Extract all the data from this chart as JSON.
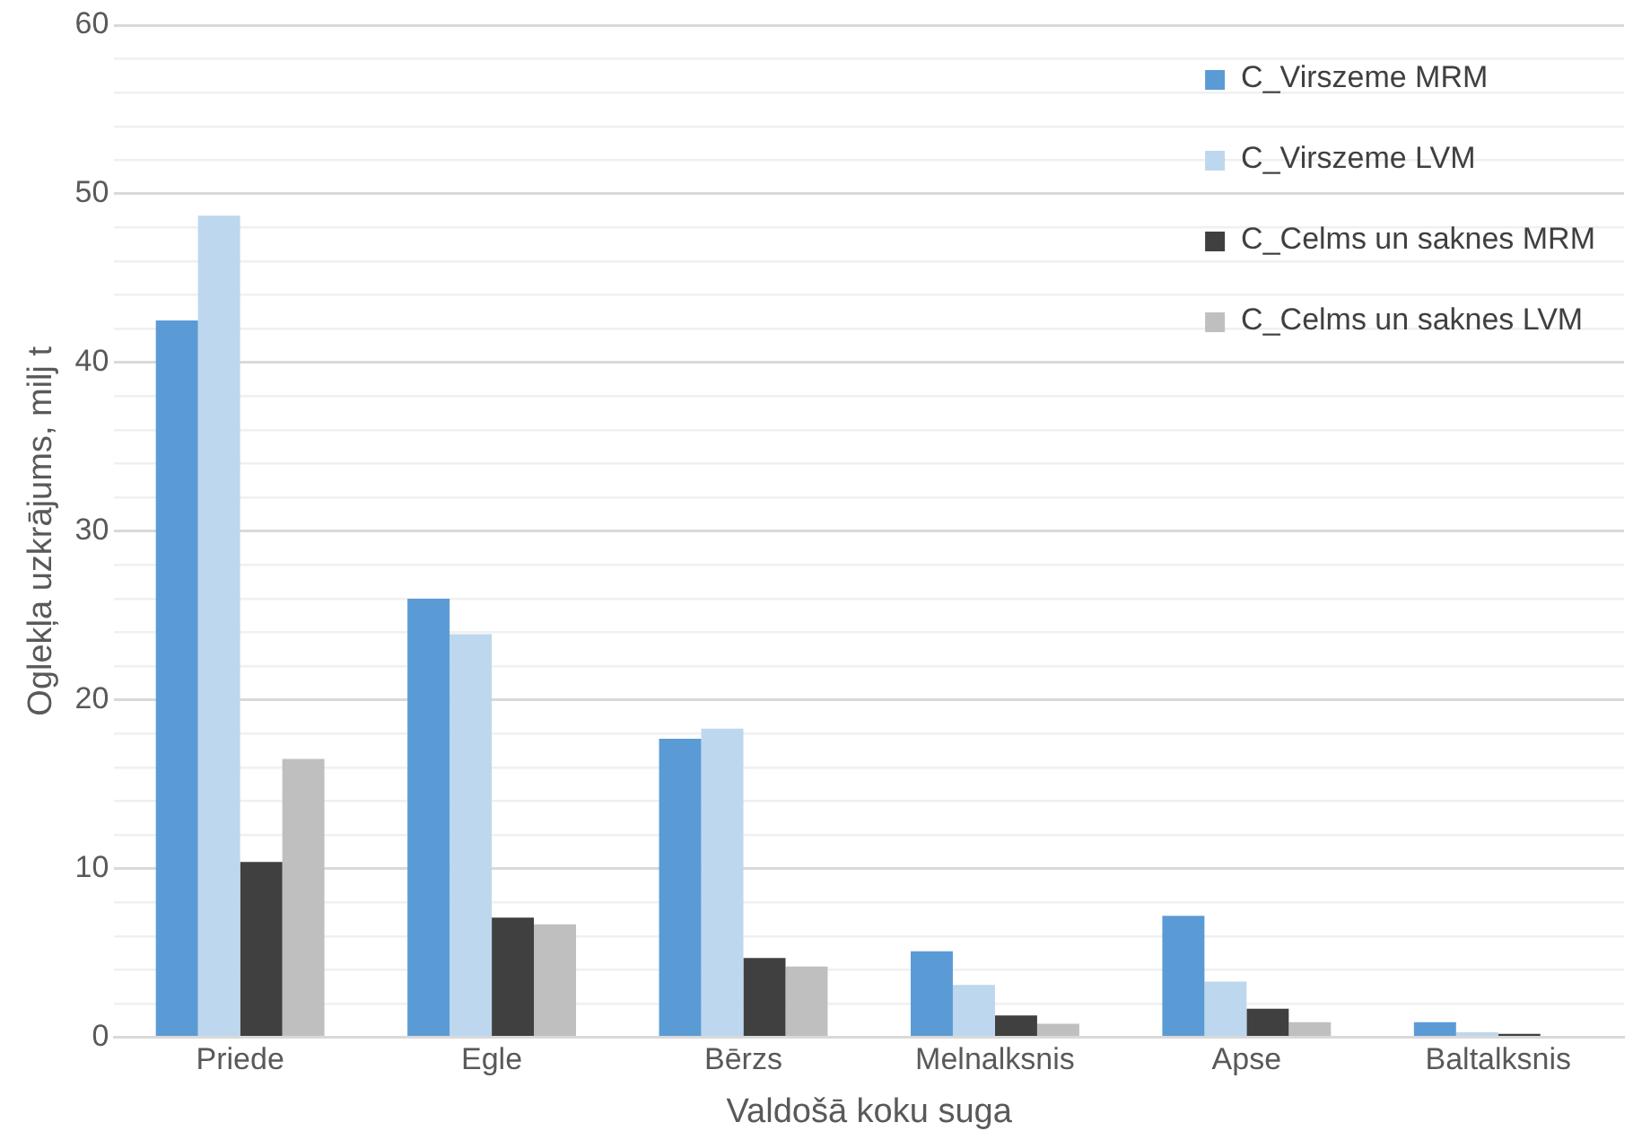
{
  "chart_data": {
    "type": "bar",
    "xlabel": "Valdošā koku suga",
    "ylabel": "Oglekļa uzkrājums, milj t",
    "categories": [
      "Priede",
      "Egle",
      "Bērzs",
      "Melnalksnis",
      "Apse",
      "Baltalksnis"
    ],
    "series": [
      {
        "name": "C_Virszeme MRM",
        "color": "#5b9bd5",
        "values": [
          42.5,
          26.0,
          17.7,
          5.1,
          7.2,
          0.9
        ]
      },
      {
        "name": "C_Virszeme LVM",
        "color": "#bdd7ee",
        "values": [
          48.7,
          23.9,
          18.3,
          3.1,
          3.3,
          0.3
        ]
      },
      {
        "name": "C_Celms un saknes MRM",
        "color": "#404040",
        "values": [
          10.4,
          7.1,
          4.7,
          1.3,
          1.7,
          0.2
        ]
      },
      {
        "name": "C_Celms un saknes LVM",
        "color": "#bfbfbf",
        "values": [
          16.5,
          6.7,
          4.2,
          0.8,
          0.9,
          null
        ]
      }
    ],
    "ylim": [
      0,
      60
    ],
    "yticks": [
      0,
      {
        "value": 2,
        "label": null
      },
      {
        "value": 4,
        "label": null
      },
      {
        "value": 6,
        "label": null
      },
      {
        "value": 8,
        "label": null
      },
      10,
      {
        "value": 12,
        "label": null
      },
      {
        "value": 14,
        "label": null
      },
      {
        "value": 16,
        "label": null
      },
      {
        "value": 18,
        "label": null
      },
      20,
      {
        "value": 22,
        "label": null
      },
      {
        "value": 24,
        "label": null
      },
      {
        "value": 26,
        "label": null
      },
      {
        "value": 28,
        "label": null
      },
      30,
      {
        "value": 32,
        "label": null
      },
      {
        "value": 34,
        "label": null
      },
      {
        "value": 36,
        "label": null
      },
      {
        "value": 38,
        "label": null
      },
      40,
      {
        "value": 42,
        "label": null
      },
      {
        "value": 44,
        "label": null
      },
      {
        "value": 46,
        "label": null
      },
      {
        "value": 48,
        "label": null
      },
      50,
      {
        "value": 52,
        "label": null
      },
      {
        "value": 54,
        "label": null
      },
      {
        "value": 56,
        "label": null
      },
      {
        "value": 58,
        "label": null
      },
      60
    ],
    "grid": "y",
    "legend": "top right"
  }
}
